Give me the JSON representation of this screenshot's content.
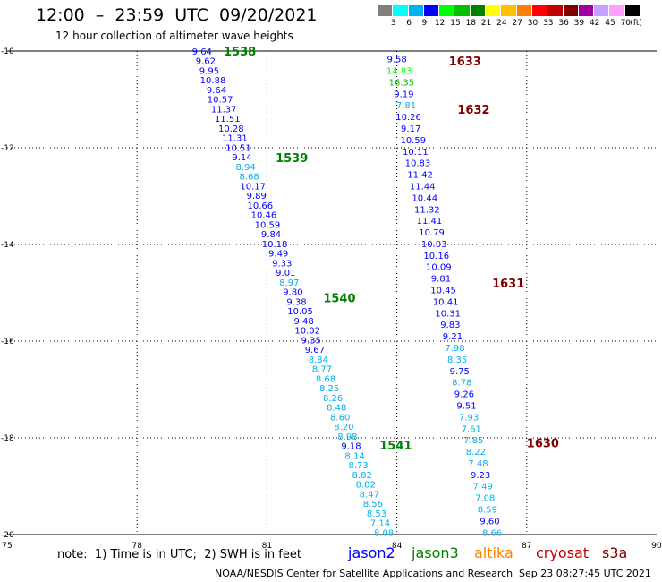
{
  "header": {
    "title": "12:00  –  23:59  UTC  09/20/2021",
    "subtitle": "12 hour collection of altimeter wave heights"
  },
  "colorbar": {
    "unit": "(ft)",
    "labels": [
      "3",
      "6",
      "9",
      "12",
      "15",
      "18",
      "21",
      "24",
      "27",
      "30",
      "33",
      "36",
      "39",
      "42",
      "45",
      "70"
    ],
    "colors": [
      "#808080",
      "#00ffff",
      "#00b0f0",
      "#0000ff",
      "#00ff00",
      "#00c000",
      "#008000",
      "#ffff00",
      "#ffc000",
      "#ff8000",
      "#ff0000",
      "#c00000",
      "#800000",
      "#a000a0",
      "#c8a0ff",
      "#ffa0ff",
      "#000000"
    ]
  },
  "legend": {
    "note": "note:  1) Time is in UTC;  2) SWH is in feet",
    "sats": [
      {
        "name": "jason2",
        "color": "#0000ff"
      },
      {
        "name": "jason3",
        "color": "#008000"
      },
      {
        "name": "altika",
        "color": "#ff8000"
      },
      {
        "name": "cryosat",
        "color": "#c00000"
      },
      {
        "name": "s3a",
        "color": "#800000"
      }
    ]
  },
  "footer": {
    "credit": "NOAA/NESDIS Center for Satellite Applications and Research",
    "timestamp": "Sep 23 08:27:45 UTC 2021"
  },
  "chart_data": {
    "type": "scatter",
    "xlim": [
      75,
      90
    ],
    "ylim": [
      -20,
      -10
    ],
    "xticks": [
      "75",
      "78",
      "81",
      "84",
      "87",
      "90"
    ],
    "yticks": [
      "-10",
      "-12",
      "-14",
      "-16",
      "-18",
      "-20"
    ],
    "grid": true,
    "series": [
      {
        "name": "track-left",
        "x_start": 79.5,
        "y_start": -10.0,
        "x_end": 83.7,
        "y_end": -19.95,
        "values": [
          "9.64",
          "9.62",
          "9.95",
          "10.88",
          "9.64",
          "10.57",
          "11.37",
          "11.51",
          "10.28",
          "11.31",
          "10.51",
          "9.14",
          "8.94",
          "8.68",
          "10.17",
          "9.89",
          "10.66",
          "10.46",
          "10.59",
          "9.84",
          "10.18",
          "9.49",
          "9.33",
          "9.01",
          "8.97",
          "9.80",
          "9.38",
          "10.05",
          "9.48",
          "10.02",
          "9.35",
          "9.67",
          "8.84",
          "8.77",
          "8.68",
          "8.25",
          "8.26",
          "8.48",
          "8.60",
          "8.20",
          "8.98",
          "9.18",
          "8.14",
          "8.73",
          "8.82",
          "8.82",
          "8.47",
          "8.56",
          "8.53",
          "7.14",
          "8.08"
        ],
        "colors": [
          "#0000ff",
          "#0000ff",
          "#0000ff",
          "#0000ff",
          "#0000ff",
          "#0000ff",
          "#0000ff",
          "#0000ff",
          "#0000ff",
          "#0000ff",
          "#0000ff",
          "#0000ff",
          "#00b0f0",
          "#00b0f0",
          "#0000ff",
          "#0000ff",
          "#0000ff",
          "#0000ff",
          "#0000ff",
          "#0000ff",
          "#0000ff",
          "#0000ff",
          "#0000ff",
          "#0000ff",
          "#00b0f0",
          "#0000ff",
          "#0000ff",
          "#0000ff",
          "#0000ff",
          "#0000ff",
          "#0000ff",
          "#0000ff",
          "#00b0f0",
          "#00b0f0",
          "#00b0f0",
          "#00b0f0",
          "#00b0f0",
          "#00b0f0",
          "#00b0f0",
          "#00b0f0",
          "#00b0f0",
          "#0000ff",
          "#00b0f0",
          "#00b0f0",
          "#00b0f0",
          "#00b0f0",
          "#00b0f0",
          "#00b0f0",
          "#00b0f0",
          "#00b0f0",
          "#00b0f0"
        ]
      },
      {
        "name": "track-right",
        "x_start": 84.0,
        "y_start": -10.16,
        "x_end": 86.2,
        "y_end": -19.95,
        "values": [
          "9.58",
          "14.83",
          "16.35",
          "9.19",
          "7.81",
          "10.26",
          "9.17",
          "10.59",
          "10.11",
          "10.83",
          "11.42",
          "11.44",
          "10.44",
          "11.32",
          "11.41",
          "10.79",
          "10.03",
          "10.16",
          "10.09",
          "9.81",
          "10.45",
          "10.41",
          "10.31",
          "9.83",
          "9.21",
          "7.98",
          "8.35",
          "9.75",
          "8.78",
          "9.26",
          "9.51",
          "7.93",
          "7.61",
          "7.85",
          "8.22",
          "7.48",
          "9.23",
          "7.49",
          "7.08",
          "8.59",
          "9.60",
          "8.66"
        ],
        "colors": [
          "#0000ff",
          "#00ff00",
          "#00c000",
          "#0000ff",
          "#00b0f0",
          "#0000ff",
          "#0000ff",
          "#0000ff",
          "#0000ff",
          "#0000ff",
          "#0000ff",
          "#0000ff",
          "#0000ff",
          "#0000ff",
          "#0000ff",
          "#0000ff",
          "#0000ff",
          "#0000ff",
          "#0000ff",
          "#0000ff",
          "#0000ff",
          "#0000ff",
          "#0000ff",
          "#0000ff",
          "#0000ff",
          "#00b0f0",
          "#00b0f0",
          "#0000ff",
          "#00b0f0",
          "#0000ff",
          "#0000ff",
          "#00b0f0",
          "#00b0f0",
          "#00b0f0",
          "#00b0f0",
          "#00b0f0",
          "#0000ff",
          "#00b0f0",
          "#00b0f0",
          "#00b0f0",
          "#0000ff",
          "#00b0f0"
        ]
      }
    ],
    "annotations": [
      {
        "text": "1538",
        "x": 80.0,
        "y": -10.0,
        "color": "#008000"
      },
      {
        "text": "1539",
        "x": 81.2,
        "y": -12.2,
        "color": "#008000"
      },
      {
        "text": "1540",
        "x": 82.3,
        "y": -15.1,
        "color": "#008000"
      },
      {
        "text": "1541",
        "x": 83.6,
        "y": -18.15,
        "color": "#008000"
      },
      {
        "text": "1633",
        "x": 85.2,
        "y": -10.2,
        "color": "#800000"
      },
      {
        "text": "1632",
        "x": 85.4,
        "y": -11.2,
        "color": "#800000"
      },
      {
        "text": "1631",
        "x": 86.2,
        "y": -14.8,
        "color": "#800000"
      },
      {
        "text": "1630",
        "x": 87.0,
        "y": -18.1,
        "color": "#800000"
      }
    ]
  }
}
